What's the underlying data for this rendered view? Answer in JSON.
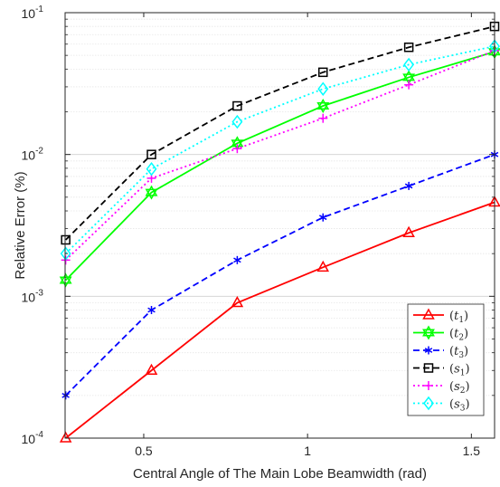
{
  "chart_data": {
    "type": "line",
    "title": "",
    "xlabel": "Central Angle of The Main Lobe Beamwidth (rad)",
    "ylabel": "Relative Error (%)",
    "yscale": "log",
    "xlim": [
      0.26,
      1.5708
    ],
    "ylim": [
      0.0001,
      0.1
    ],
    "grid": "y-major-and-minor",
    "legend_position": "bottom-right",
    "x": [
      0.2618,
      0.5236,
      0.7854,
      1.0472,
      1.309,
      1.5708
    ],
    "xticks": [
      {
        "value": 0.5,
        "label": "0.5"
      },
      {
        "value": 1.0,
        "label": "1"
      },
      {
        "value": 1.5,
        "label": "1.5"
      }
    ],
    "yticks": [
      {
        "exp": -4,
        "base": "10",
        "sup": "-4"
      },
      {
        "exp": -3,
        "base": "10",
        "sup": "-3"
      },
      {
        "exp": -2,
        "base": "10",
        "sup": "-2"
      },
      {
        "exp": -1,
        "base": "10",
        "sup": "-1"
      }
    ],
    "series": [
      {
        "name": "(t1)",
        "legend_main": "t",
        "legend_sub": "1",
        "color": "#ff0000",
        "dash": "solid",
        "marker": "triangle",
        "values": [
          0.0001,
          0.0003,
          0.0009,
          0.0016,
          0.0028,
          0.0046
        ]
      },
      {
        "name": "(t2)",
        "legend_main": "t",
        "legend_sub": "2",
        "color": "#00ff00",
        "dash": "solid",
        "marker": "hexagram",
        "values": [
          0.0013,
          0.0054,
          0.012,
          0.022,
          0.035,
          0.053
        ]
      },
      {
        "name": "(t3)",
        "legend_main": "t",
        "legend_sub": "3",
        "color": "#0000ff",
        "dash": "dashed",
        "marker": "asterisk",
        "values": [
          0.0002,
          0.0008,
          0.0018,
          0.0036,
          0.006,
          0.01
        ]
      },
      {
        "name": "(s1)",
        "legend_main": "s",
        "legend_sub": "1",
        "color": "#000000",
        "dash": "dashed",
        "marker": "square",
        "values": [
          0.0025,
          0.01,
          0.022,
          0.038,
          0.057,
          0.08
        ]
      },
      {
        "name": "(s2)",
        "legend_main": "s",
        "legend_sub": "2",
        "color": "#ff00ff",
        "dash": "dotted",
        "marker": "plus",
        "values": [
          0.0018,
          0.0068,
          0.011,
          0.018,
          0.031,
          0.054
        ]
      },
      {
        "name": "(s3)",
        "legend_main": "s",
        "legend_sub": "3",
        "color": "#00ffff",
        "dash": "dotted",
        "marker": "diamond",
        "values": [
          0.002,
          0.0079,
          0.017,
          0.029,
          0.043,
          0.058
        ]
      }
    ]
  }
}
